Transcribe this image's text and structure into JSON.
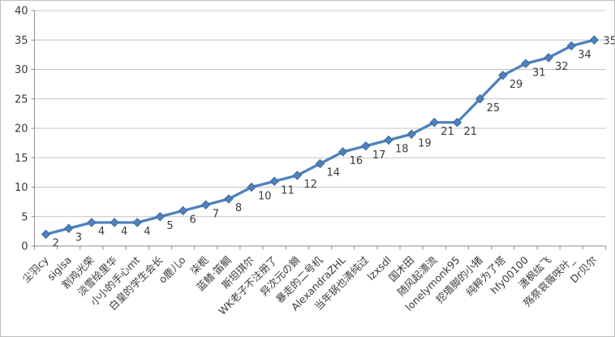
{
  "chart_data": {
    "type": "line",
    "title": "",
    "xlabel": "",
    "ylabel": "",
    "categories": [
      "尘羽cy",
      "sigisa",
      "割鸡光荣",
      "淡雪绘里华",
      "小小的手心mt",
      "白皇的学生会长",
      "o鹿儿o",
      "柒栀",
      "蓝鳍·笛鲷",
      "斯坦琪尔",
      "WK老子不注册了",
      "异次元の鎖",
      "暴走的二号机",
      "AlexandraZHL",
      "当年锅也清纯过",
      "lzxsdl",
      "国木田",
      "随风起漂流",
      "lonelymonk95",
      "挖墙脚的小猪",
      "纯粹为了塔",
      "hfy00100",
      "潇枫纮飞",
      "殇祭哀薇咲叶_",
      "Dr贝尔"
    ],
    "values": [
      2,
      3,
      4,
      4,
      4,
      5,
      6,
      7,
      8,
      10,
      11,
      12,
      14,
      16,
      17,
      18,
      19,
      21,
      21,
      25,
      29,
      31,
      32,
      34,
      35
    ],
    "data_labels": [
      2,
      3,
      4,
      4,
      4,
      5,
      6,
      7,
      8,
      10,
      11,
      12,
      14,
      16,
      17,
      18,
      19,
      21,
      21,
      25,
      29,
      31,
      32,
      34,
      35
    ],
    "yticks": [
      0,
      5,
      10,
      15,
      20,
      25,
      30,
      35,
      40
    ],
    "ylim": [
      0,
      40
    ],
    "grid": true,
    "legend": false,
    "marker": "diamond",
    "x_label_rotation": -45,
    "colors": {
      "line": "#4F81BD",
      "marker_fill": "#4F81BD",
      "marker_edge": "#3E6A9E",
      "grid": "#C3C3C3",
      "axis": "#8E8E8E",
      "text": "#3B3B3B",
      "background": "#FFFFFF"
    }
  }
}
